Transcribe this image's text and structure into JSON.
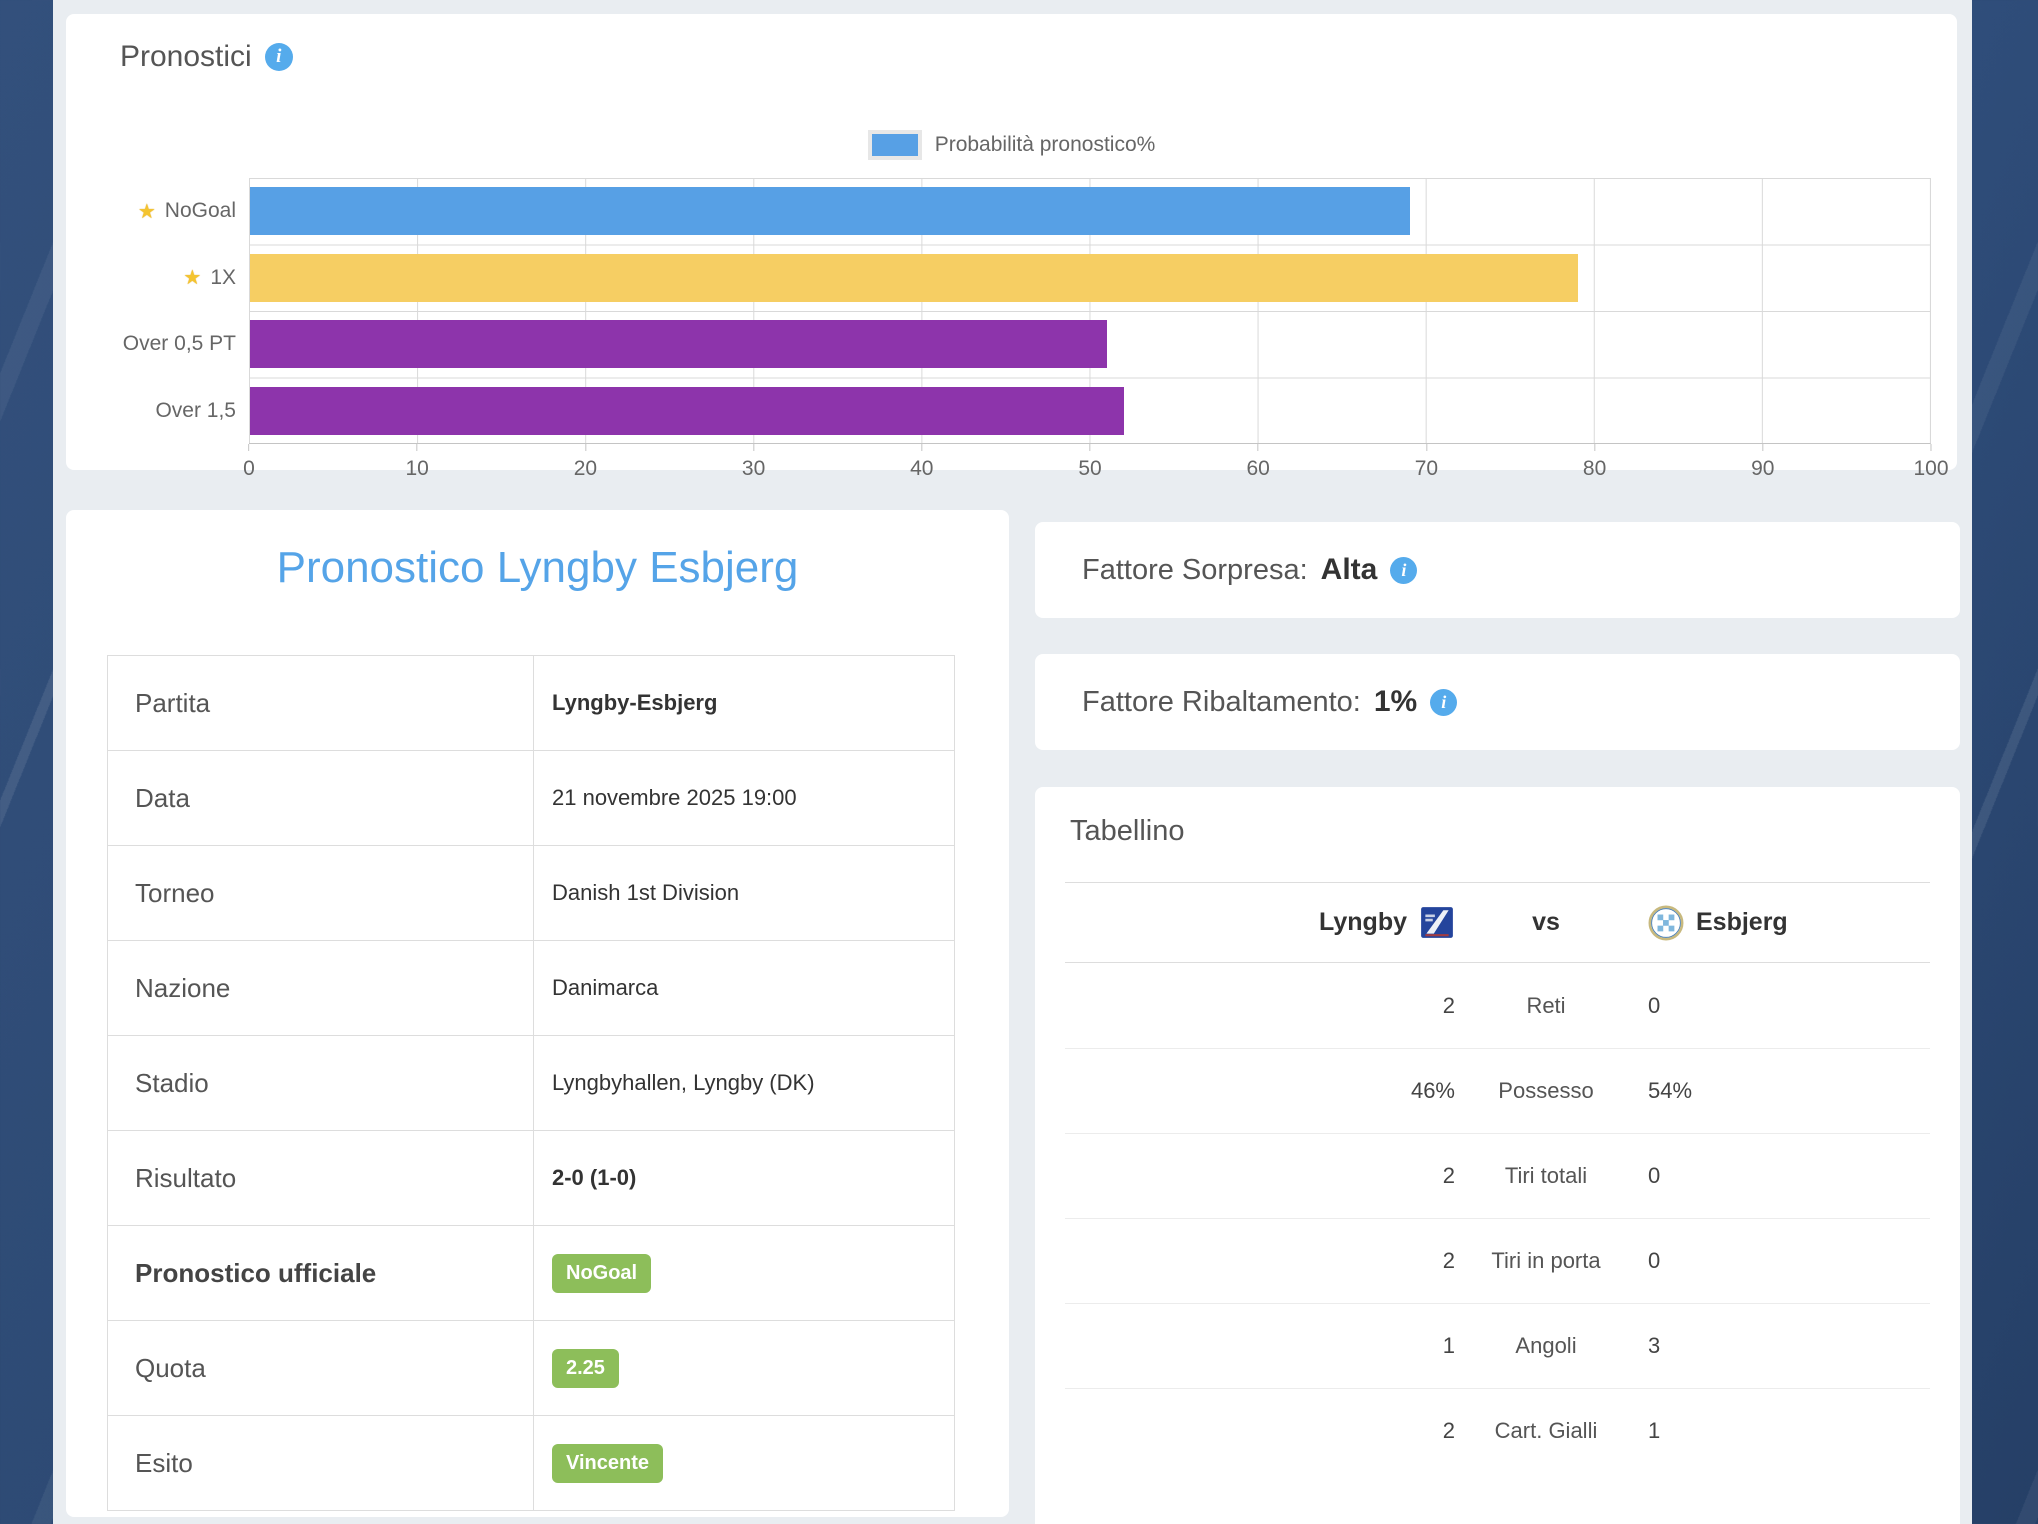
{
  "colors": {
    "page_background": "#2c4971",
    "panel_background": "#e9edf1",
    "bar_blue": "#57a0e5",
    "bar_yellow": "#f6ce63",
    "bar_purple": "#8d34ab",
    "badge_green": "#8dbe5a",
    "title_blue": "#55a4e8",
    "info_icon_blue": "#55abec"
  },
  "chart_card": {
    "title": "Pronostici",
    "legend_label": "Probabilità pronostico%"
  },
  "chart_data": {
    "type": "bar",
    "orientation": "horizontal",
    "title": "Pronostici",
    "legend": [
      "Probabilità pronostico%"
    ],
    "legend_position": "top",
    "categories": [
      "NoGoal",
      "1X",
      "Over 0,5 PT",
      "Over 1,5"
    ],
    "starred": [
      true,
      true,
      false,
      false
    ],
    "star_char": "★",
    "values": [
      69,
      79,
      51,
      52
    ],
    "bar_colors": [
      "#57a0e5",
      "#f6ce63",
      "#8d34ab",
      "#8d34ab"
    ],
    "xlabel": "",
    "ylabel": "",
    "xlim": [
      0,
      100
    ],
    "xticks": [
      0,
      10,
      20,
      30,
      40,
      50,
      60,
      70,
      80,
      90,
      100
    ],
    "grid": true
  },
  "match_card": {
    "title": "Pronostico Lyngby Esbjerg",
    "rows": [
      {
        "label": "Partita",
        "value": "Lyngby-Esbjerg",
        "value_style": "bold"
      },
      {
        "label": "Data",
        "value": "21 novembre 2025 19:00",
        "value_style": "text"
      },
      {
        "label": "Torneo",
        "value": "Danish 1st Division",
        "value_style": "text"
      },
      {
        "label": "Nazione",
        "value": "Danimarca",
        "value_style": "text"
      },
      {
        "label": "Stadio",
        "value": "Lyngbyhallen, Lyngby (DK)",
        "value_style": "text"
      },
      {
        "label": "Risultato",
        "value": "2-0 (1-0)",
        "value_style": "bold"
      },
      {
        "label": "Pronostico ufficiale",
        "label_style": "bold",
        "value": "NoGoal",
        "value_style": "badge"
      },
      {
        "label": "Quota",
        "value": "2.25",
        "value_style": "badge"
      },
      {
        "label": "Esito",
        "value": "Vincente",
        "value_style": "badge"
      }
    ]
  },
  "factor_cards": [
    {
      "label": "Fattore Sorpresa:",
      "value": "Alta"
    },
    {
      "label": "Fattore Ribaltamento:",
      "value": "1%"
    }
  ],
  "tabellino": {
    "title": "Tabellino",
    "home_team": "Lyngby",
    "vs_label": "vs",
    "away_team": "Esbjerg",
    "rows": [
      {
        "home": "2",
        "label": "Reti",
        "away": "0"
      },
      {
        "home": "46%",
        "label": "Possesso",
        "away": "54%"
      },
      {
        "home": "2",
        "label": "Tiri totali",
        "away": "0"
      },
      {
        "home": "2",
        "label": "Tiri in porta",
        "away": "0"
      },
      {
        "home": "1",
        "label": "Angoli",
        "away": "3"
      },
      {
        "home": "2",
        "label": "Cart. Gialli",
        "away": "1"
      }
    ]
  }
}
